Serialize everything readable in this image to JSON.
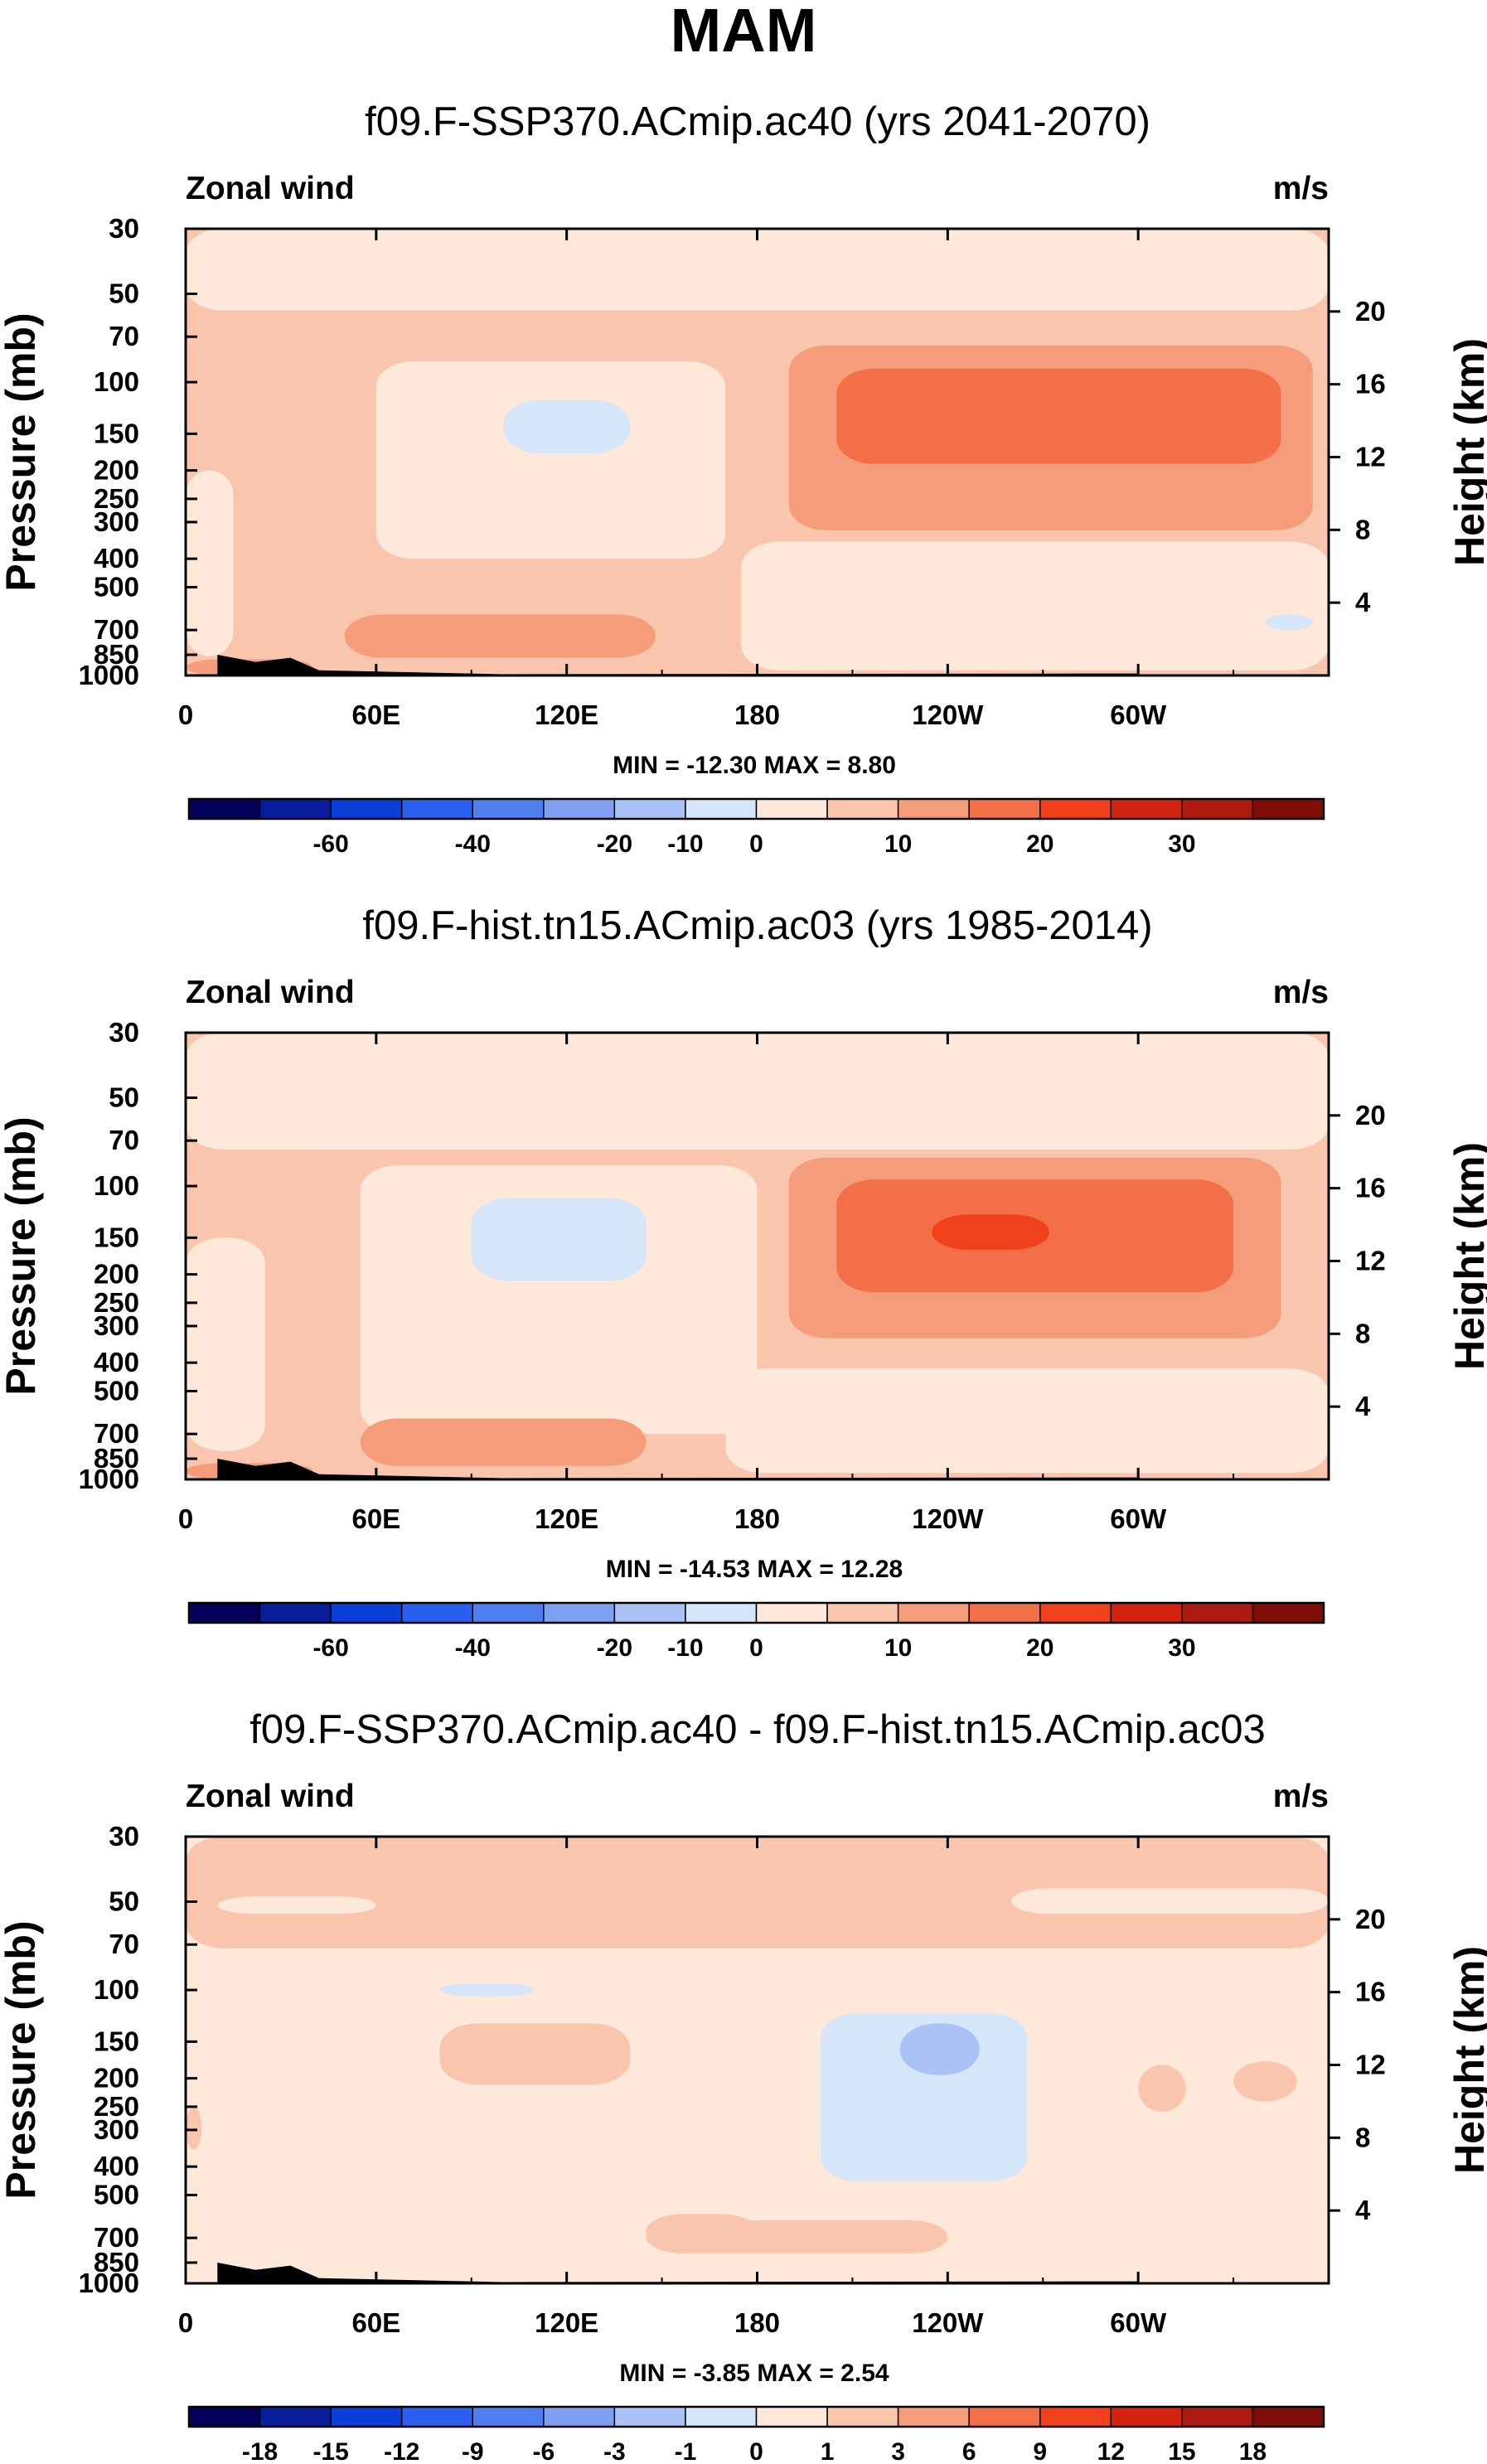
{
  "title": "MAM",
  "colors": {
    "palette_main": [
      "#05005a",
      "#0a1e9b",
      "#0b40d8",
      "#2a5ff0",
      "#4e7ef0",
      "#7e9ff2",
      "#aac2f6",
      "#d6e6fa",
      "#fde8d9",
      "#f9c6ad",
      "#f59d7a",
      "#f26f47",
      "#f0401c",
      "#d42411",
      "#ad1b10",
      "#7f0d08"
    ],
    "palette_diff": [
      "#05005a",
      "#0a1e9b",
      "#0b40d8",
      "#2a5ff0",
      "#4e7ef0",
      "#7e9ff2",
      "#aac2f6",
      "#d6e6fa",
      "#fde8d9",
      "#f9c6ad",
      "#f59d7a",
      "#f26f47",
      "#f0401c",
      "#d42411",
      "#ad1b10",
      "#7f0d08"
    ],
    "topography": "#000000"
  },
  "chart_data": [
    {
      "type": "heatmap",
      "title": "f09.F-SSP370.ACmip.ac40 (yrs 2041-2070)",
      "left_label": "Zonal wind",
      "right_label": "m/s",
      "ylabel": "Pressure (mb)",
      "ylabel_right": "Height (km)",
      "x_ticks": [
        "0",
        "60E",
        "120E",
        "180",
        "120W",
        "60W"
      ],
      "x_tick_values": [
        0,
        60,
        120,
        180,
        240,
        300
      ],
      "xlim": [
        0,
        360
      ],
      "y_ticks": [
        30,
        50,
        70,
        100,
        150,
        200,
        250,
        300,
        400,
        500,
        700,
        850,
        1000
      ],
      "ylim": [
        1000,
        30
      ],
      "height_ticks": [
        4,
        8,
        12,
        16,
        20
      ],
      "min_max": "MIN = -12.30  MAX =   8.80",
      "colorbar_labels": [
        "-60",
        "-40",
        "-20",
        "-10",
        "0",
        "10",
        "20",
        "30"
      ],
      "colorbar_label_boundaries": [
        2,
        4,
        6,
        7,
        8,
        10,
        12,
        14
      ],
      "base_level": 1,
      "regions": [
        {
          "level": 0,
          "lon": [
            0,
            360
          ],
          "p": [
            30,
            57
          ]
        },
        {
          "level": 0,
          "lon": [
            60,
            170
          ],
          "p": [
            85,
            400
          ]
        },
        {
          "level": -1,
          "lon": [
            100,
            140
          ],
          "p": [
            115,
            175
          ]
        },
        {
          "level": 0,
          "lon": [
            0,
            15
          ],
          "p": [
            200,
            860
          ]
        },
        {
          "level": 0,
          "lon": [
            175,
            360
          ],
          "p": [
            350,
            960
          ]
        },
        {
          "level": 2,
          "lon": [
            190,
            355
          ],
          "p": [
            75,
            320
          ]
        },
        {
          "level": 3,
          "lon": [
            205,
            345
          ],
          "p": [
            90,
            190
          ]
        },
        {
          "level": 2,
          "lon": [
            50,
            148
          ],
          "p": [
            620,
            870
          ]
        },
        {
          "level": 2,
          "lon": [
            0,
            40
          ],
          "p": [
            880,
            1000
          ]
        },
        {
          "level": -1,
          "lon": [
            340,
            355
          ],
          "p": [
            620,
            700
          ]
        }
      ],
      "topography": [
        [
          10,
          850
        ],
        [
          22,
          900
        ],
        [
          33,
          870
        ],
        [
          42,
          960
        ],
        [
          100,
          990
        ],
        [
          283,
          985
        ],
        [
          300,
          985
        ]
      ]
    },
    {
      "type": "heatmap",
      "title": "f09.F-hist.tn15.ACmip.ac03 (yrs 1985-2014)",
      "left_label": "Zonal wind",
      "right_label": "m/s",
      "ylabel": "Pressure (mb)",
      "ylabel_right": "Height (km)",
      "x_ticks": [
        "0",
        "60E",
        "120E",
        "180",
        "120W",
        "60W"
      ],
      "x_tick_values": [
        0,
        60,
        120,
        180,
        240,
        300
      ],
      "xlim": [
        0,
        360
      ],
      "y_ticks": [
        30,
        50,
        70,
        100,
        150,
        200,
        250,
        300,
        400,
        500,
        700,
        850,
        1000
      ],
      "ylim": [
        1000,
        30
      ],
      "height_ticks": [
        4,
        8,
        12,
        16,
        20
      ],
      "min_max": "MIN = -14.53  MAX =  12.28",
      "colorbar_labels": [
        "-60",
        "-40",
        "-20",
        "-10",
        "0",
        "10",
        "20",
        "30"
      ],
      "colorbar_label_boundaries": [
        2,
        4,
        6,
        7,
        8,
        10,
        12,
        14
      ],
      "base_level": 1,
      "regions": [
        {
          "level": 0,
          "lon": [
            0,
            360
          ],
          "p": [
            30,
            75
          ]
        },
        {
          "level": 0,
          "lon": [
            55,
            180
          ],
          "p": [
            85,
            700
          ]
        },
        {
          "level": -1,
          "lon": [
            90,
            145
          ],
          "p": [
            110,
            210
          ]
        },
        {
          "level": 0,
          "lon": [
            0,
            25
          ],
          "p": [
            150,
            800
          ]
        },
        {
          "level": 0,
          "lon": [
            170,
            360
          ],
          "p": [
            420,
            950
          ]
        },
        {
          "level": 2,
          "lon": [
            190,
            345
          ],
          "p": [
            80,
            330
          ]
        },
        {
          "level": 3,
          "lon": [
            205,
            330
          ],
          "p": [
            95,
            230
          ]
        },
        {
          "level": 4,
          "lon": [
            235,
            272
          ],
          "p": [
            125,
            165
          ]
        },
        {
          "level": 2,
          "lon": [
            55,
            145
          ],
          "p": [
            620,
            900
          ]
        },
        {
          "level": 2,
          "lon": [
            0,
            40
          ],
          "p": [
            880,
            1000
          ]
        }
      ],
      "topography": [
        [
          10,
          850
        ],
        [
          22,
          900
        ],
        [
          33,
          870
        ],
        [
          42,
          960
        ],
        [
          100,
          990
        ],
        [
          283,
          985
        ],
        [
          300,
          985
        ]
      ]
    },
    {
      "type": "heatmap",
      "title": "f09.F-SSP370.ACmip.ac40 - f09.F-hist.tn15.ACmip.ac03",
      "left_label": "Zonal wind",
      "right_label": "m/s",
      "ylabel": "Pressure (mb)",
      "ylabel_right": "Height (km)",
      "x_ticks": [
        "0",
        "60E",
        "120E",
        "180",
        "120W",
        "60W"
      ],
      "x_tick_values": [
        0,
        60,
        120,
        180,
        240,
        300
      ],
      "xlim": [
        0,
        360
      ],
      "y_ticks": [
        30,
        50,
        70,
        100,
        150,
        200,
        250,
        300,
        400,
        500,
        700,
        850,
        1000
      ],
      "ylim": [
        1000,
        30
      ],
      "height_ticks": [
        4,
        8,
        12,
        16,
        20
      ],
      "min_max": "MIN = -3.85  MAX =   2.54",
      "colorbar_labels": [
        "-18",
        "-15",
        "-12",
        "-9",
        "-6",
        "-3",
        "-1",
        "0",
        "1",
        "3",
        "6",
        "9",
        "12",
        "15",
        "18"
      ],
      "colorbar_label_boundaries": [
        1,
        2,
        3,
        4,
        5,
        6,
        7,
        8,
        9,
        10,
        11,
        12,
        13,
        14,
        15
      ],
      "base_level": 0,
      "regions": [
        {
          "level": 1,
          "lon": [
            0,
            360
          ],
          "p": [
            30,
            72
          ]
        },
        {
          "level": 0,
          "lon": [
            10,
            60
          ],
          "p": [
            48,
            55
          ]
        },
        {
          "level": 0,
          "lon": [
            260,
            360
          ],
          "p": [
            45,
            55
          ]
        },
        {
          "level": 0,
          "lon": [
            25,
            360
          ],
          "p": [
            90,
            110
          ]
        },
        {
          "level": -1,
          "lon": [
            80,
            110
          ],
          "p": [
            95,
            105
          ]
        },
        {
          "level": 0,
          "lon": [
            0,
            50
          ],
          "p": [
            100,
            800
          ]
        },
        {
          "level": 0,
          "lon": [
            165,
            330
          ],
          "p": [
            110,
            600
          ]
        },
        {
          "level": -1,
          "lon": [
            200,
            265
          ],
          "p": [
            120,
            450
          ]
        },
        {
          "level": -2,
          "lon": [
            225,
            250
          ],
          "p": [
            130,
            195
          ]
        },
        {
          "level": 0,
          "lon": [
            270,
            340
          ],
          "p": [
            600,
            700
          ]
        },
        {
          "level": 1,
          "lon": [
            80,
            140
          ],
          "p": [
            130,
            210
          ]
        },
        {
          "level": 1,
          "lon": [
            145,
            180
          ],
          "p": [
            580,
            760
          ]
        },
        {
          "level": 1,
          "lon": [
            0,
            5
          ],
          "p": [
            250,
            350
          ]
        },
        {
          "level": 1,
          "lon": [
            300,
            315
          ],
          "p": [
            180,
            260
          ]
        },
        {
          "level": 1,
          "lon": [
            330,
            350
          ],
          "p": [
            175,
            240
          ]
        },
        {
          "level": 1,
          "lon": [
            145,
            240
          ],
          "p": [
            610,
            790
          ]
        }
      ],
      "topography": [
        [
          10,
          850
        ],
        [
          22,
          900
        ],
        [
          33,
          870
        ],
        [
          42,
          960
        ],
        [
          100,
          990
        ],
        [
          283,
          985
        ],
        [
          300,
          985
        ]
      ]
    }
  ]
}
